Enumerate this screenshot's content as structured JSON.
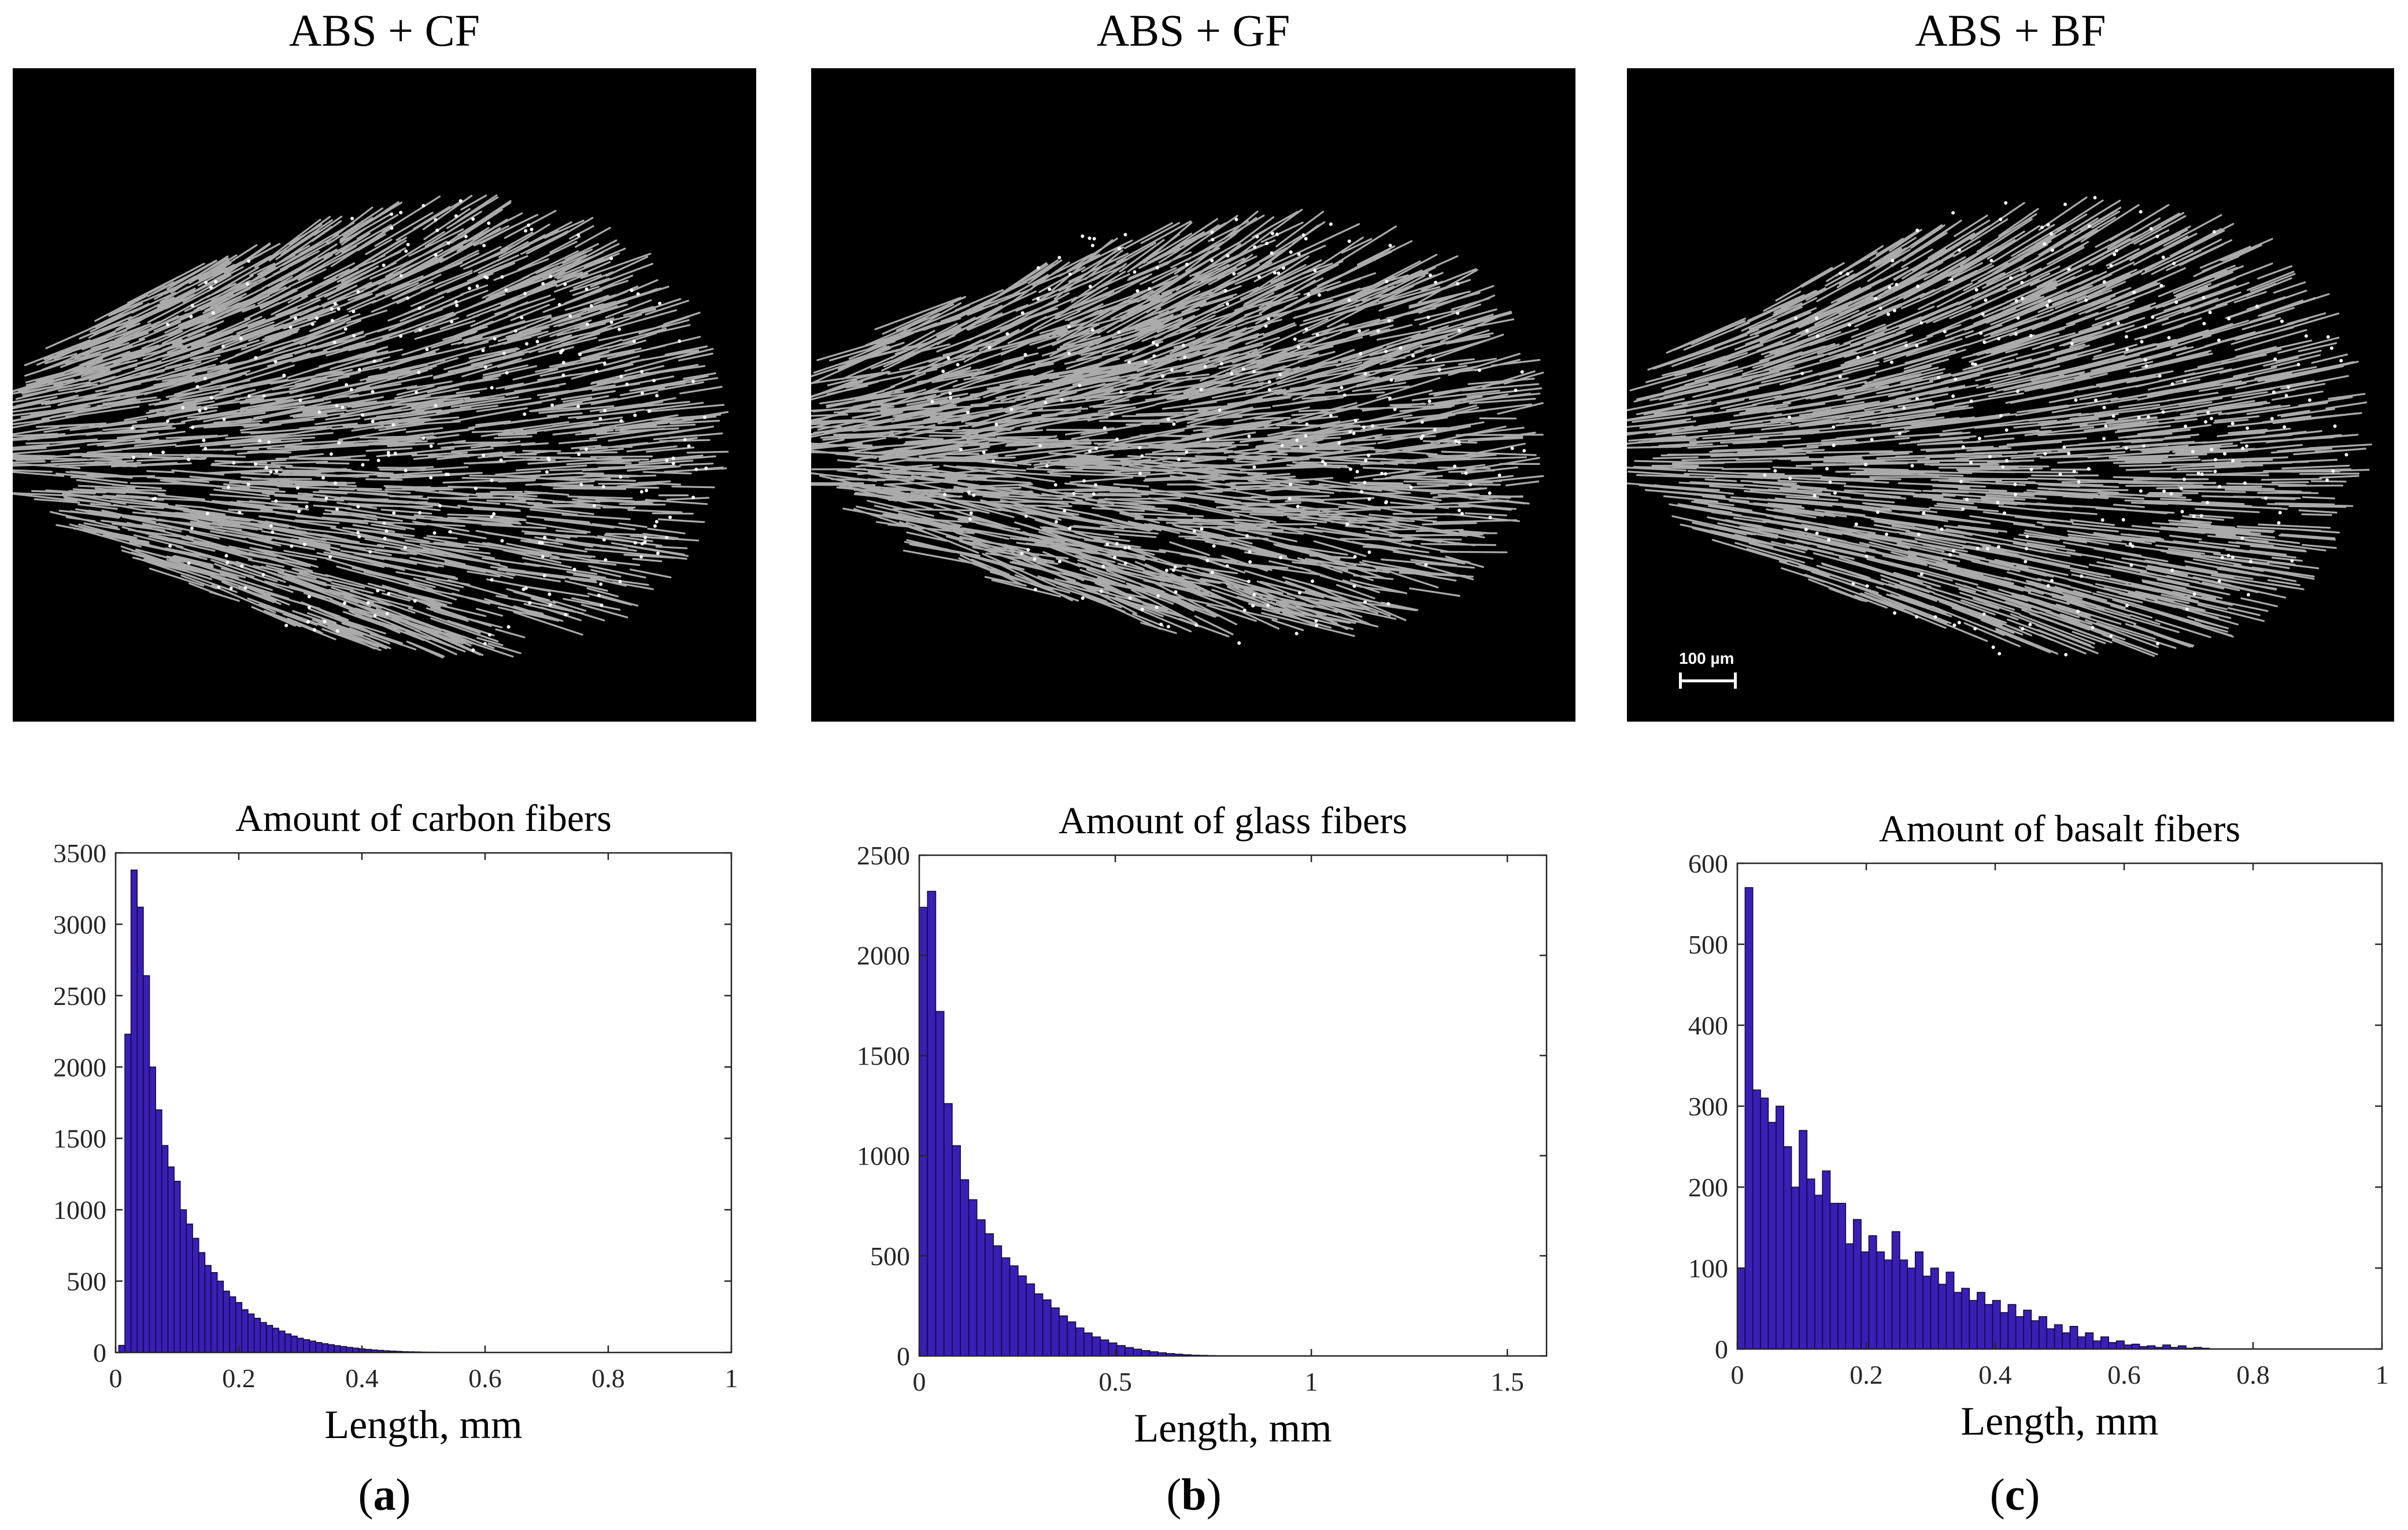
{
  "panels": [
    {
      "photo_title": "ABS + CF",
      "caption_open": "(",
      "caption_letter": "a",
      "caption_close": ")",
      "scale_label": ""
    },
    {
      "photo_title": "ABS + GF",
      "caption_open": "(",
      "caption_letter": "b",
      "caption_close": ")",
      "scale_label": ""
    },
    {
      "photo_title": "ABS + BF",
      "caption_open": "(",
      "caption_letter": "c",
      "caption_close": ")",
      "scale_label": "100 µm"
    }
  ],
  "colors": {
    "bar_fill": "#3b1eb4",
    "bar_edge": "#100640",
    "fiber": "#c8c8c8",
    "photo_bg": "#000000"
  },
  "chart_data": [
    {
      "type": "bar",
      "title": "Amount of carbon fibers",
      "xlabel": "Length, mm",
      "ylabel": "",
      "xlim": [
        0,
        1
      ],
      "ylim": [
        0,
        3500
      ],
      "xticks": [
        0,
        0.2,
        0.4,
        0.6,
        0.8,
        1
      ],
      "xtick_labels": [
        "0",
        "0.2",
        "0.4",
        "0.6",
        "0.8",
        "1"
      ],
      "yticks": [
        0,
        500,
        1000,
        1500,
        2000,
        2500,
        3000,
        3500
      ],
      "ytick_labels": [
        "0",
        "500",
        "1000",
        "1500",
        "2000",
        "2500",
        "3000",
        "3500"
      ],
      "bin_start": 0.005,
      "bin_width": 0.01,
      "values": [
        50,
        2230,
        3380,
        3120,
        2640,
        2000,
        1700,
        1450,
        1300,
        1200,
        1000,
        900,
        800,
        700,
        610,
        560,
        500,
        430,
        390,
        350,
        300,
        270,
        240,
        210,
        190,
        170,
        150,
        130,
        115,
        100,
        90,
        80,
        70,
        62,
        55,
        48,
        42,
        36,
        31,
        26,
        22,
        18,
        15,
        12,
        10,
        8,
        6,
        5,
        4,
        3,
        2,
        2,
        1,
        1,
        1
      ]
    },
    {
      "type": "bar",
      "title": "Amount of glass fibers",
      "xlabel": "Length, mm",
      "ylabel": "",
      "xlim": [
        0,
        1.6
      ],
      "ylim": [
        0,
        2500
      ],
      "xticks": [
        0,
        0.5,
        1,
        1.5
      ],
      "xtick_labels": [
        "0",
        "0.5",
        "1",
        "1.5"
      ],
      "yticks": [
        0,
        500,
        1000,
        1500,
        2000,
        2500
      ],
      "ytick_labels": [
        "0",
        "500",
        "1000",
        "1500",
        "2000",
        "2500"
      ],
      "bin_start": 0.0,
      "bin_width": 0.021,
      "values": [
        2240,
        2320,
        1720,
        1260,
        1050,
        880,
        780,
        680,
        610,
        550,
        490,
        450,
        400,
        360,
        310,
        280,
        240,
        200,
        170,
        140,
        115,
        95,
        80,
        65,
        52,
        42,
        34,
        27,
        21,
        16,
        12,
        9,
        6,
        4,
        3,
        2,
        1,
        1
      ]
    },
    {
      "type": "bar",
      "title": "Amount of basalt fibers",
      "xlabel": "Length, mm",
      "ylabel": "",
      "xlim": [
        0,
        1
      ],
      "ylim": [
        0,
        600
      ],
      "xticks": [
        0,
        0.2,
        0.4,
        0.6,
        0.8,
        1
      ],
      "xtick_labels": [
        "0",
        "0.2",
        "0.4",
        "0.6",
        "0.8",
        "1"
      ],
      "yticks": [
        0,
        100,
        200,
        300,
        400,
        500,
        600
      ],
      "ytick_labels": [
        "0",
        "100",
        "200",
        "300",
        "400",
        "500",
        "600"
      ],
      "bin_start": 0.0,
      "bin_width": 0.012,
      "values": [
        100,
        570,
        320,
        310,
        280,
        300,
        250,
        200,
        270,
        210,
        190,
        220,
        180,
        180,
        130,
        160,
        120,
        140,
        120,
        110,
        145,
        110,
        100,
        120,
        90,
        100,
        80,
        95,
        70,
        75,
        60,
        70,
        55,
        60,
        45,
        55,
        40,
        48,
        35,
        40,
        25,
        30,
        20,
        28,
        15,
        20,
        10,
        15,
        8,
        10,
        5,
        6,
        3,
        4,
        2,
        5,
        2,
        4,
        1,
        2,
        1
      ]
    }
  ]
}
